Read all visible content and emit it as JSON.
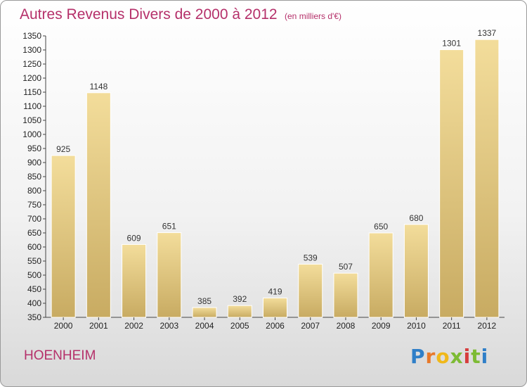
{
  "title": "Autres Revenus Divers de 2000 à 2012",
  "subtitle": "(en milliers d'€)",
  "city": "HOENHEIM",
  "brand": {
    "letters": [
      "P",
      "r",
      "o",
      "x",
      "i",
      "t",
      "i"
    ],
    "colors": [
      "#2f7fc8",
      "#e8792a",
      "#f0b81a",
      "#7dbb34",
      "#d63d3d",
      "#7dbb34",
      "#2f7fc8"
    ]
  },
  "colors": {
    "title": "#b5306a",
    "bar_light": "#f3dd9b",
    "bar_dark": "#c8ab62"
  },
  "chart_data": {
    "type": "bar",
    "title": "Autres Revenus Divers de 2000 à 2012",
    "categories": [
      "2000",
      "2001",
      "2002",
      "2003",
      "2004",
      "2005",
      "2006",
      "2007",
      "2008",
      "2009",
      "2010",
      "2011",
      "2012"
    ],
    "values": [
      925,
      1148,
      609,
      651,
      385,
      392,
      419,
      539,
      507,
      650,
      680,
      1301,
      1337
    ],
    "ylim": [
      350,
      1350
    ],
    "yticks": [
      350,
      400,
      450,
      500,
      550,
      600,
      650,
      700,
      750,
      800,
      850,
      900,
      950,
      1000,
      1050,
      1100,
      1150,
      1200,
      1250,
      1300,
      1350
    ],
    "grid": false,
    "legend": "none"
  }
}
